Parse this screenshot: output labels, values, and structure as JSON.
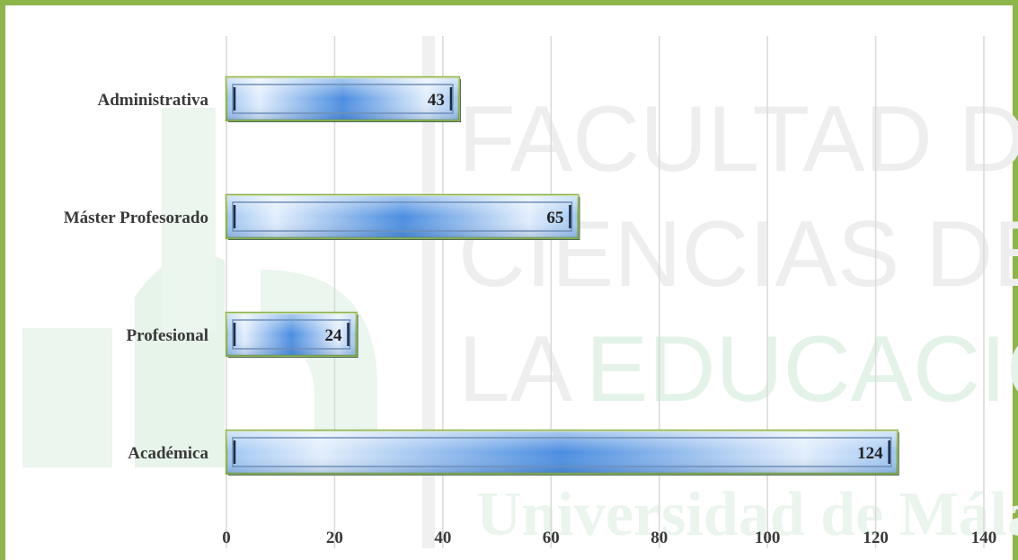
{
  "watermark": {
    "line1": "FACULTAD DE",
    "line2": "CIENCIAS DE",
    "line3a": "LA",
    "line3b": "EDUCACIÓN",
    "line4": "Universidad de Málaga"
  },
  "chart_data": {
    "type": "bar",
    "orientation": "horizontal",
    "categories": [
      "Administrativa",
      "Máster Profesorado",
      "Profesional",
      "Académica"
    ],
    "values": [
      43,
      65,
      24,
      124
    ],
    "title": "",
    "xlabel": "",
    "ylabel": "",
    "xlim": [
      0,
      140
    ],
    "ticks": [
      0,
      20,
      40,
      60,
      80,
      100,
      120,
      140
    ],
    "grid": true,
    "legend": "none",
    "colors": {
      "bar_edge": "#8db54a",
      "bar_dark": "#3b7dd8",
      "bar_light": "#dcebfb",
      "grid": "#d9d9d9",
      "frame": "#8db54a"
    }
  }
}
